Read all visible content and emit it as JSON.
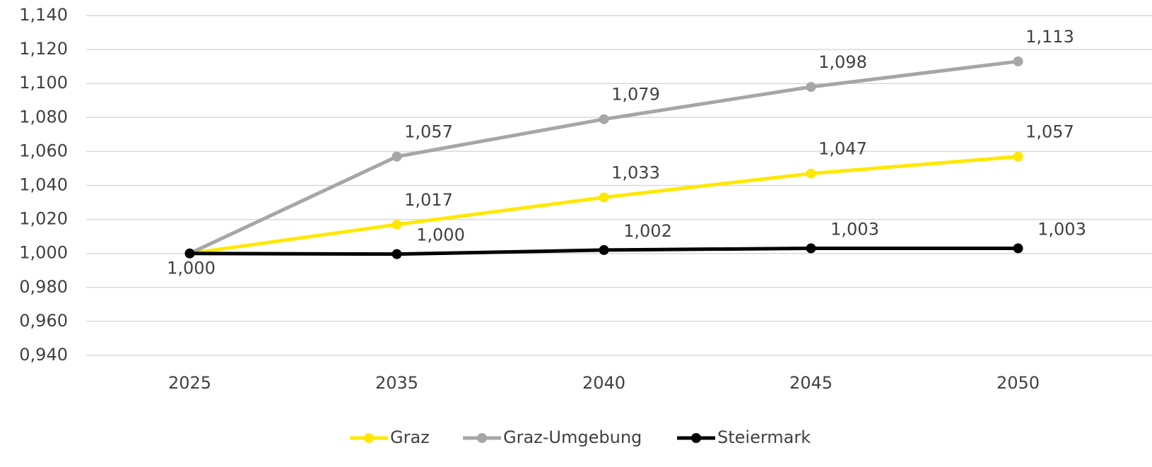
{
  "chart_data": {
    "type": "line",
    "categories": [
      "2025",
      "2035",
      "2040",
      "2045",
      "2050"
    ],
    "series": [
      {
        "name": "Graz",
        "color": "#ffe800",
        "values": [
          1.0,
          1.017,
          1.033,
          1.047,
          1.057
        ],
        "value_labels": [
          null,
          "1,017",
          "1,033",
          "1,047",
          "1,057"
        ]
      },
      {
        "name": "Graz-Umgebung",
        "color": "#a6a6a6",
        "values": [
          1.0,
          1.057,
          1.079,
          1.098,
          1.113
        ],
        "value_labels": [
          null,
          "1,057",
          "1,079",
          "1,098",
          "1,113"
        ]
      },
      {
        "name": "Steiermark",
        "color": "#000000",
        "values": [
          1.0,
          0.9996,
          1.002,
          1.003,
          1.003
        ],
        "value_labels": [
          "1,000",
          "1,000",
          "1,002",
          "1,003",
          "1,003"
        ]
      }
    ],
    "ylim": [
      0.94,
      1.14
    ],
    "yticks": [
      {
        "value": 0.94,
        "label": "0,940"
      },
      {
        "value": 0.96,
        "label": "0,960"
      },
      {
        "value": 0.98,
        "label": "0,980"
      },
      {
        "value": 1.0,
        "label": "1,000"
      },
      {
        "value": 1.02,
        "label": "1,020"
      },
      {
        "value": 1.04,
        "label": "1,040"
      },
      {
        "value": 1.06,
        "label": "1,060"
      },
      {
        "value": 1.08,
        "label": "1,080"
      },
      {
        "value": 1.1,
        "label": "1,100"
      },
      {
        "value": 1.12,
        "label": "1,120"
      },
      {
        "value": 1.14,
        "label": "1,140"
      }
    ],
    "grid": true,
    "legend": "bottom"
  }
}
